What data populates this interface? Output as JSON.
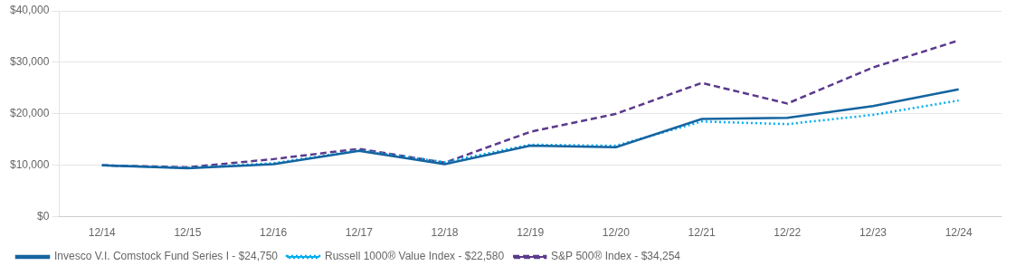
{
  "chart_data": {
    "type": "line",
    "categories": [
      "12/14",
      "12/15",
      "12/16",
      "12/17",
      "12/18",
      "12/19",
      "12/20",
      "12/21",
      "12/22",
      "12/23",
      "12/24"
    ],
    "series": [
      {
        "name": "Invesco V.I. Comstock Fund Series I - $24,750",
        "color": "#1464A0",
        "line_style": "solid",
        "values": [
          10000,
          9400,
          10200,
          12800,
          10200,
          13800,
          13500,
          19000,
          19200,
          21500,
          24750
        ]
      },
      {
        "name": "Russell 1000® Value Index - $22,580",
        "color": "#00AEEF",
        "line_style": "dotted",
        "values": [
          10000,
          9500,
          10400,
          12900,
          10600,
          14000,
          13800,
          18500,
          18000,
          19800,
          22580
        ]
      },
      {
        "name": "S&P 500® Index - $34,254",
        "color": "#5B3A8C",
        "line_style": "dashed",
        "values": [
          10000,
          9600,
          11200,
          13200,
          10500,
          16500,
          20000,
          26000,
          22000,
          29000,
          34254
        ]
      }
    ],
    "ylim": [
      0,
      40000
    ],
    "yticks": [
      {
        "value": 0,
        "label": "$0"
      },
      {
        "value": 10000,
        "label": "$10,000"
      },
      {
        "value": 20000,
        "label": "$20,000"
      },
      {
        "value": 30000,
        "label": "$30,000"
      },
      {
        "value": 40000,
        "label": "$40,000"
      }
    ],
    "grid": true,
    "legend": "bottom"
  }
}
